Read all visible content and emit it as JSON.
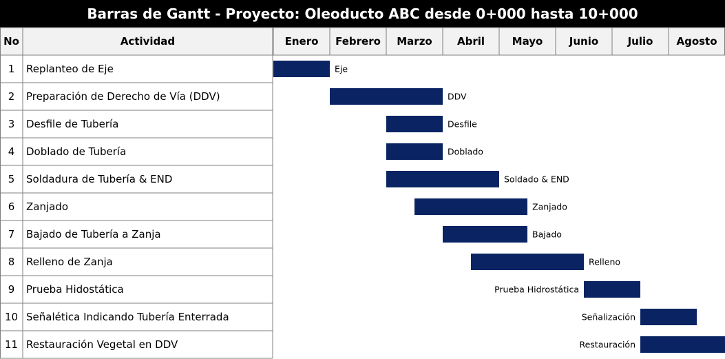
{
  "chart_data": {
    "type": "gantt",
    "title": "Barras de Gantt - Proyecto: Oleoducto ABC desde 0+000 hasta 10+000",
    "headers": {
      "no": "No",
      "activity": "Actividad"
    },
    "months": [
      "Enero",
      "Febrero",
      "Marzo",
      "Abril",
      "Mayo",
      "Junio",
      "Julio",
      "Agosto"
    ],
    "tasks": [
      {
        "no": "1",
        "activity": "Replanteo de Eje",
        "label": "Eje",
        "start": 0.0,
        "end": 1.0,
        "label_side": "right"
      },
      {
        "no": "2",
        "activity": "Preparación de Derecho de Vía (DDV)",
        "label": "DDV",
        "start": 1.0,
        "end": 3.0,
        "label_side": "right"
      },
      {
        "no": "3",
        "activity": "Desfile de Tubería",
        "label": "Desfile",
        "start": 2.0,
        "end": 3.0,
        "label_side": "right"
      },
      {
        "no": "4",
        "activity": "Doblado de Tubería",
        "label": "Doblado",
        "start": 2.0,
        "end": 3.0,
        "label_side": "right"
      },
      {
        "no": "5",
        "activity": "Soldadura de Tubería & END",
        "label": "Soldado & END",
        "start": 2.0,
        "end": 4.0,
        "label_side": "right"
      },
      {
        "no": "6",
        "activity": "Zanjado",
        "label": "Zanjado",
        "start": 2.5,
        "end": 4.5,
        "label_side": "right"
      },
      {
        "no": "7",
        "activity": "Bajado de Tubería a Zanja",
        "label": "Bajado",
        "start": 3.0,
        "end": 4.5,
        "label_side": "right"
      },
      {
        "no": "8",
        "activity": "Relleno de Zanja",
        "label": "Relleno",
        "start": 3.5,
        "end": 5.5,
        "label_side": "right"
      },
      {
        "no": "9",
        "activity": "Prueba Hidostática",
        "label": "Prueba Hidrostática",
        "start": 5.5,
        "end": 6.5,
        "label_side": "left"
      },
      {
        "no": "10",
        "activity": "Señalética Indicando Tubería Enterrada",
        "label": "Señalización",
        "start": 6.5,
        "end": 7.5,
        "label_side": "left"
      },
      {
        "no": "11",
        "activity": "Restauración Vegetal en DDV",
        "label": "Restauración",
        "start": 6.5,
        "end": 8.0,
        "label_side": "left"
      }
    ],
    "colors": {
      "bar": "#0a2463",
      "header_bg": "#f2f2f2",
      "title_bg": "#000000",
      "title_text": "#ffffff",
      "grid": "#7f7f7f"
    }
  }
}
